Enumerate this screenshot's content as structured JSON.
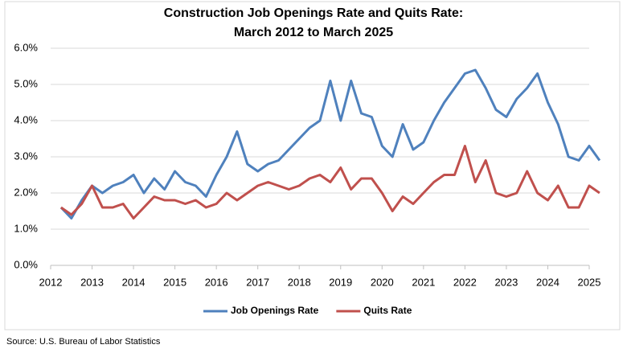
{
  "chart_data": {
    "type": "line",
    "title": "Construction Job Openings Rate and Quits Rate:",
    "subtitle": "March 2012 to March 2025",
    "source": "Source: U.S. Bureau of Labor Statistics",
    "x": [
      2012.25,
      2012.5,
      2012.75,
      2013,
      2013.25,
      2013.5,
      2013.75,
      2014,
      2014.25,
      2014.5,
      2014.75,
      2015,
      2015.25,
      2015.5,
      2015.75,
      2016,
      2016.25,
      2016.5,
      2016.75,
      2017,
      2017.25,
      2017.5,
      2017.75,
      2018,
      2018.25,
      2018.5,
      2018.75,
      2019,
      2019.25,
      2019.5,
      2019.75,
      2020,
      2020.25,
      2020.5,
      2020.75,
      2021,
      2021.25,
      2021.5,
      2021.75,
      2022,
      2022.25,
      2022.5,
      2022.75,
      2023,
      2023.25,
      2023.5,
      2023.75,
      2024,
      2024.25,
      2024.5,
      2024.75,
      2025,
      2025.25
    ],
    "series": [
      {
        "name": "Job Openings Rate",
        "color": "#4f81bd",
        "values": [
          1.6,
          1.3,
          1.8,
          2.2,
          2.0,
          2.2,
          2.3,
          2.5,
          2.0,
          2.4,
          2.1,
          2.6,
          2.3,
          2.2,
          1.9,
          2.5,
          3.0,
          3.7,
          2.8,
          2.6,
          2.8,
          2.9,
          3.2,
          3.5,
          3.8,
          4.0,
          5.1,
          4.0,
          5.1,
          4.2,
          4.1,
          3.3,
          3.0,
          3.9,
          3.2,
          3.4,
          4.0,
          4.5,
          4.9,
          5.3,
          5.4,
          4.9,
          4.3,
          4.1,
          4.6,
          4.9,
          5.3,
          4.5,
          3.9,
          3.0,
          2.9,
          3.3,
          2.9
        ]
      },
      {
        "name": "Quits Rate",
        "color": "#c0504d",
        "values": [
          1.6,
          1.4,
          1.7,
          2.2,
          1.6,
          1.6,
          1.7,
          1.3,
          1.6,
          1.9,
          1.8,
          1.8,
          1.7,
          1.8,
          1.6,
          1.7,
          2.0,
          1.8,
          2.0,
          2.2,
          2.3,
          2.2,
          2.1,
          2.2,
          2.4,
          2.5,
          2.3,
          2.7,
          2.1,
          2.4,
          2.4,
          2.0,
          1.5,
          1.9,
          1.7,
          2.0,
          2.3,
          2.5,
          2.5,
          3.3,
          2.3,
          2.9,
          2.0,
          1.9,
          2.0,
          2.6,
          2.0,
          1.8,
          2.2,
          1.6,
          1.6,
          2.2,
          2.0
        ]
      }
    ],
    "xlim": [
      2012,
      2025
    ],
    "xticks": [
      2012,
      2013,
      2014,
      2015,
      2016,
      2017,
      2018,
      2019,
      2020,
      2021,
      2022,
      2023,
      2024,
      2025
    ],
    "ylim": [
      0,
      6
    ],
    "yticks": [
      {
        "value": 0,
        "label": "0.0%"
      },
      {
        "value": 1,
        "label": "1.0%"
      },
      {
        "value": 2,
        "label": "2.0%"
      },
      {
        "value": 3,
        "label": "3.0%"
      },
      {
        "value": 4,
        "label": "4.0%"
      },
      {
        "value": 5,
        "label": "5.0%"
      },
      {
        "value": 6,
        "label": "6.0%"
      }
    ],
    "grid": true,
    "legend": "bottom"
  }
}
